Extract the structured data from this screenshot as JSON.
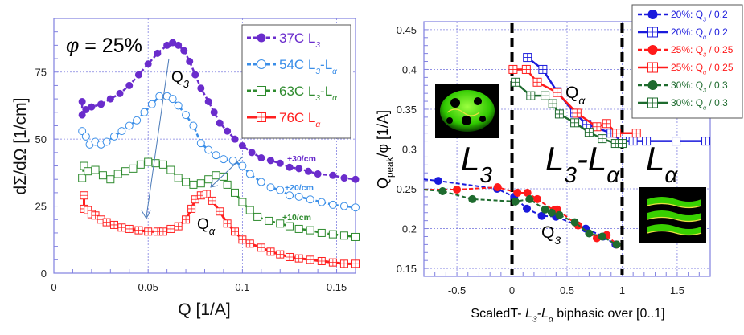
{
  "colors": {
    "purple": "#6a2ccc",
    "lightblue": "#3a8ee8",
    "green": "#2e8b2e",
    "red": "#ff2020",
    "blue": "#1a1adc",
    "red2": "#ff1a1a",
    "darkgreen": "#1e6b2e",
    "frame": "#8080e0"
  },
  "chart_data": [
    {
      "type": "scatter",
      "xlabel": "Q [1/A]",
      "ylabel": "dΣ/dΩ [1/cm]",
      "xlim": [
        0,
        0.16
      ],
      "ylim": [
        0,
        95
      ],
      "xticks": [
        "0",
        "0.05",
        "0.1",
        "0.15"
      ],
      "yticks": [
        "0",
        "25",
        "50",
        "75"
      ],
      "grid": true,
      "legend_placement": "top-right",
      "annotations": {
        "phi_symbol": "φ",
        "phi": " = 25%",
        "q3_main": "Q",
        "q3_sub": "3",
        "qa_main": "Q",
        "qa_sub": "α",
        "off30": "+30/cm",
        "off20": "+20/cm",
        "off10": "+10/cm"
      },
      "series": [
        {
          "name": "37C L3",
          "legend": [
            [
              "37C L",
              false
            ],
            [
              "3",
              true
            ]
          ],
          "color": "purple",
          "marker": "filled-circle",
          "line": "dashed",
          "x": [
            0.015,
            0.015,
            0.017,
            0.02,
            0.025,
            0.03,
            0.035,
            0.04,
            0.045,
            0.05,
            0.055,
            0.06,
            0.063,
            0.066,
            0.069,
            0.072,
            0.075,
            0.078,
            0.082,
            0.085,
            0.088,
            0.092,
            0.096,
            0.1,
            0.105,
            0.11,
            0.115,
            0.12,
            0.125,
            0.13,
            0.135,
            0.14,
            0.148,
            0.154,
            0.16
          ],
          "y": [
            59,
            64,
            61,
            62,
            63,
            65,
            67,
            70,
            74,
            78,
            82,
            85,
            86,
            85,
            83,
            79,
            74,
            69,
            64,
            60,
            56,
            53,
            50,
            47.5,
            45,
            43,
            42,
            41,
            39.5,
            39,
            38,
            37,
            36.5,
            35.5,
            35
          ]
        },
        {
          "name": "54C L3-Lα",
          "legend": [
            [
              "54C L",
              false
            ],
            [
              "3",
              true
            ],
            [
              "-L",
              false
            ],
            [
              "α",
              true
            ]
          ],
          "color": "lightblue",
          "marker": "open-circle",
          "line": "dashed",
          "x": [
            0.015,
            0.017,
            0.019,
            0.022,
            0.025,
            0.028,
            0.032,
            0.036,
            0.04,
            0.044,
            0.048,
            0.052,
            0.056,
            0.06,
            0.063,
            0.066,
            0.07,
            0.074,
            0.078,
            0.082,
            0.086,
            0.09,
            0.095,
            0.1,
            0.104,
            0.11,
            0.115,
            0.12,
            0.125,
            0.13,
            0.136,
            0.142,
            0.148,
            0.154,
            0.16
          ],
          "y": [
            53,
            51,
            48,
            49,
            48,
            49,
            51,
            53,
            55,
            57,
            60,
            63,
            66,
            66,
            65,
            62.5,
            59,
            55,
            48.5,
            46,
            44,
            42.5,
            42,
            40,
            37,
            34,
            32,
            31,
            29,
            28.5,
            27.5,
            26.5,
            25.5,
            25,
            24.5
          ]
        },
        {
          "name": "63C L3-Lα",
          "legend": [
            [
              "63C L",
              false
            ],
            [
              "3",
              true
            ],
            [
              "-L",
              false
            ],
            [
              "α",
              true
            ]
          ],
          "color": "green",
          "marker": "open-square",
          "line": "dashed",
          "x": [
            0.015,
            0.016,
            0.018,
            0.022,
            0.026,
            0.03,
            0.034,
            0.038,
            0.042,
            0.046,
            0.05,
            0.054,
            0.058,
            0.062,
            0.066,
            0.07,
            0.074,
            0.078,
            0.082,
            0.086,
            0.09,
            0.092,
            0.096,
            0.1,
            0.104,
            0.108,
            0.114,
            0.12,
            0.125,
            0.13,
            0.136,
            0.142,
            0.148,
            0.154,
            0.16
          ],
          "y": [
            35.5,
            40,
            38,
            38.5,
            36.5,
            35,
            37,
            38,
            39,
            40.5,
            41.5,
            41,
            40.5,
            38.5,
            35.5,
            34,
            33,
            33.5,
            35,
            36.5,
            36,
            33,
            30,
            26.5,
            23.5,
            21,
            19.5,
            18.5,
            17.5,
            16.5,
            16,
            15,
            14.5,
            14,
            13.5
          ]
        },
        {
          "name": "76C Lα",
          "legend": [
            [
              "76C L",
              false
            ],
            [
              "α",
              true
            ]
          ],
          "color": "red",
          "marker": "grid-square",
          "line": "solid",
          "x": [
            0.016,
            0.016,
            0.018,
            0.02,
            0.022,
            0.025,
            0.028,
            0.032,
            0.036,
            0.04,
            0.045,
            0.05,
            0.055,
            0.058,
            0.062,
            0.066,
            0.07,
            0.073,
            0.075,
            0.078,
            0.081,
            0.084,
            0.088,
            0.092,
            0.096,
            0.1,
            0.104,
            0.11,
            0.115,
            0.12,
            0.125,
            0.13,
            0.136,
            0.142,
            0.148,
            0.154,
            0.16
          ],
          "y": [
            29,
            24,
            23.5,
            22,
            21.5,
            20,
            19,
            18,
            17,
            16.5,
            16,
            15.5,
            15.5,
            15.5,
            16.5,
            17.5,
            20,
            24,
            27.5,
            29,
            29.5,
            27,
            23,
            18.5,
            15.5,
            12.5,
            11,
            9.5,
            8,
            7,
            6,
            5.5,
            5,
            4.5,
            4,
            3.5,
            3.5
          ]
        }
      ]
    },
    {
      "type": "scatter",
      "xlabel_parts": [
        [
          "ScaledT- ",
          false,
          false
        ],
        [
          "L",
          false,
          true
        ],
        [
          "3",
          true,
          true
        ],
        [
          "-L",
          false,
          true
        ],
        [
          "α",
          true,
          true
        ],
        [
          " biphasic over [0..1]",
          false,
          false
        ]
      ],
      "ylabel_parts": [
        [
          "Q",
          false
        ],
        [
          "peak",
          true
        ],
        [
          "/φ [1/A]",
          false
        ]
      ],
      "xlim": [
        -0.8,
        1.8
      ],
      "ylim": [
        0.14,
        0.46
      ],
      "xticks": [
        "-0.5",
        "0",
        "0.5",
        "1",
        "1.5"
      ],
      "yticks": [
        "0.15",
        "0.2",
        "0.25",
        "0.3",
        "0.35",
        "0.4",
        "0.45"
      ],
      "grid": true,
      "legend_placement": "top-right",
      "phase_boundaries": [
        0,
        1
      ],
      "regions": {
        "l3_main": "L",
        "l3_sub": "3",
        "mix_main": "L",
        "mix_sub": "3",
        "mix_dash": "-L",
        "mix_sub2": "α",
        "la_main": "L",
        "la_sub": "α",
        "qa_main": "Q",
        "qa_sub": "α",
        "q3_main": "Q",
        "q3_sub": "3"
      },
      "series": [
        {
          "name": "20%: Q3 / 0.2",
          "legend": [
            [
              "20%: ",
              false
            ],
            [
              "Q",
              false
            ],
            [
              "3",
              true
            ],
            [
              " / 0.2",
              false
            ]
          ],
          "color": "blue",
          "marker": "filled-circle",
          "line": "dashed",
          "x": [
            -0.85,
            -0.67,
            -0.135,
            0.02,
            0.135,
            0.27,
            0.4,
            0.67,
            0.83,
            0.94
          ],
          "y": [
            0.262,
            0.26,
            0.25,
            0.24,
            0.225,
            0.216,
            0.215,
            0.2,
            0.19,
            0.18
          ]
        },
        {
          "name": "20%: Qα / 0.2",
          "legend": [
            [
              "20%: ",
              false
            ],
            [
              "Q",
              false
            ],
            [
              "α",
              true
            ],
            [
              " / 0.2",
              false
            ]
          ],
          "color": "blue",
          "marker": "grid-square",
          "line": "solid",
          "x": [
            0.14,
            0.28,
            0.41,
            0.57,
            0.68,
            0.9,
            1.0,
            1.1,
            1.22,
            1.49,
            1.76
          ],
          "y": [
            0.415,
            0.4,
            0.372,
            0.345,
            0.331,
            0.32,
            0.31,
            0.31,
            0.31,
            0.31,
            0.31
          ]
        },
        {
          "name": "25%: Q3 / 0.25",
          "legend": [
            [
              "25%: ",
              false
            ],
            [
              "Q",
              false
            ],
            [
              "3",
              true
            ],
            [
              " / 0.25",
              false
            ]
          ],
          "color": "red2",
          "marker": "filled-circle",
          "line": "dashed",
          "x": [
            -0.85,
            -0.5,
            -0.13,
            0.05,
            0.14,
            0.23,
            0.38,
            0.41,
            0.6,
            0.77,
            0.86,
            0.95
          ],
          "y": [
            0.249,
            0.249,
            0.252,
            0.245,
            0.245,
            0.237,
            0.223,
            0.224,
            0.204,
            0.188,
            0.192,
            0.18
          ]
        },
        {
          "name": "25%: Qα / 0.25",
          "legend": [
            [
              "25%: ",
              false
            ],
            [
              "Q",
              false
            ],
            [
              "α",
              true
            ],
            [
              " / 0.25",
              false
            ]
          ],
          "color": "red2",
          "marker": "grid-square",
          "line": "solid",
          "x": [
            0.01,
            0.13,
            0.23,
            0.41,
            0.59,
            0.77,
            0.86,
            0.95,
            1.13
          ],
          "y": [
            0.4,
            0.4,
            0.384,
            0.371,
            0.345,
            0.328,
            0.332,
            0.32,
            0.32
          ]
        },
        {
          "name": "30%: Q3 / 0.3",
          "legend": [
            [
              "30%: ",
              false
            ],
            [
              "Q",
              false
            ],
            [
              "3",
              true
            ],
            [
              " / 0.3",
              false
            ]
          ],
          "color": "darkgreen",
          "marker": "filled-circle",
          "line": "dashed",
          "x": [
            -0.85,
            -0.63,
            -0.36,
            0.03,
            0.16,
            0.3,
            0.36,
            0.43,
            0.57,
            0.7,
            0.82,
            0.95
          ],
          "y": [
            0.249,
            0.247,
            0.237,
            0.234,
            0.237,
            0.224,
            0.22,
            0.217,
            0.208,
            0.194,
            0.19,
            0.18
          ]
        },
        {
          "name": "30%: Qα / 0.3",
          "legend": [
            [
              "30%: ",
              false
            ],
            [
              "Q",
              false
            ],
            [
              "α",
              true
            ],
            [
              " / 0.3",
              false
            ]
          ],
          "color": "darkgreen",
          "marker": "grid-square",
          "line": "solid",
          "x": [
            0.03,
            0.17,
            0.3,
            0.37,
            0.43,
            0.57,
            0.7,
            0.82,
            0.94,
            1.0
          ],
          "y": [
            0.384,
            0.367,
            0.367,
            0.357,
            0.344,
            0.333,
            0.321,
            0.313,
            0.307,
            0.307
          ]
        }
      ]
    }
  ]
}
